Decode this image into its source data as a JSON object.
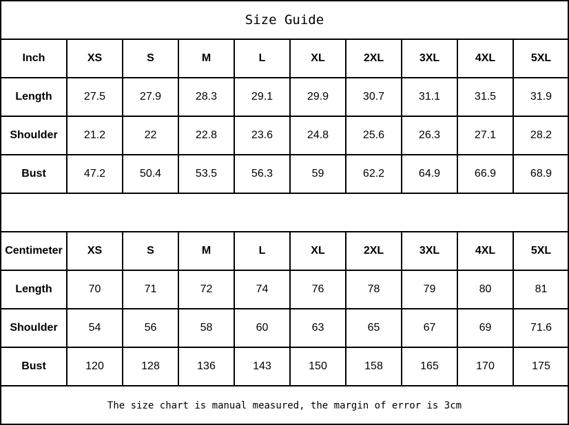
{
  "title": "Size Guide",
  "tables": [
    {
      "unit": "Inch",
      "sizes": [
        "XS",
        "S",
        "M",
        "L",
        "XL",
        "2XL",
        "3XL",
        "4XL",
        "5XL"
      ],
      "rows": [
        {
          "label": "Length",
          "values": [
            "27.5",
            "27.9",
            "28.3",
            "29.1",
            "29.9",
            "30.7",
            "31.1",
            "31.5",
            "31.9"
          ]
        },
        {
          "label": "Shoulder",
          "values": [
            "21.2",
            "22",
            "22.8",
            "23.6",
            "24.8",
            "25.6",
            "26.3",
            "27.1",
            "28.2"
          ]
        },
        {
          "label": "Bust",
          "values": [
            "47.2",
            "50.4",
            "53.5",
            "56.3",
            "59",
            "62.2",
            "64.9",
            "66.9",
            "68.9"
          ]
        }
      ]
    },
    {
      "unit": "Centimeter",
      "sizes": [
        "XS",
        "S",
        "M",
        "L",
        "XL",
        "2XL",
        "3XL",
        "4XL",
        "5XL"
      ],
      "rows": [
        {
          "label": "Length",
          "values": [
            "70",
            "71",
            "72",
            "74",
            "76",
            "78",
            "79",
            "80",
            "81"
          ]
        },
        {
          "label": "Shoulder",
          "values": [
            "54",
            "56",
            "58",
            "60",
            "63",
            "65",
            "67",
            "69",
            "71.6"
          ]
        },
        {
          "label": "Bust",
          "values": [
            "120",
            "128",
            "136",
            "143",
            "150",
            "158",
            "165",
            "170",
            "175"
          ]
        }
      ]
    }
  ],
  "footer": "The size chart is manual measured, the margin of error is 3cm"
}
